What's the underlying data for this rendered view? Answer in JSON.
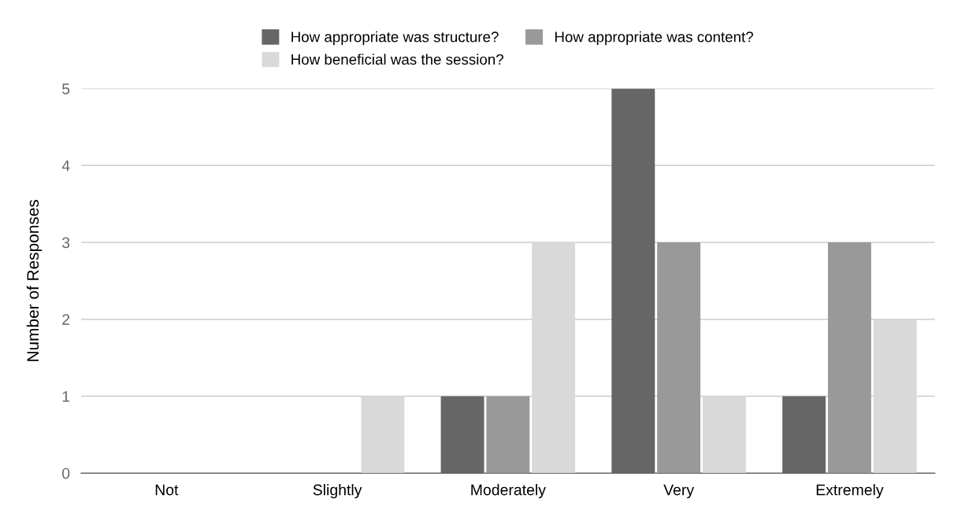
{
  "chart_data": {
    "type": "bar",
    "ylabel": "Number of Responses",
    "categories": [
      "Not",
      "Slightly",
      "Moderately",
      "Very",
      "Extremely"
    ],
    "series": [
      {
        "name": "How appropriate was structure?",
        "color": "#666666",
        "values": [
          0,
          0,
          1,
          5,
          1
        ]
      },
      {
        "name": "How appropriate was content?",
        "color": "#999999",
        "values": [
          0,
          0,
          1,
          3,
          3
        ]
      },
      {
        "name": "How beneficial was the session?",
        "color": "#d9d9d9",
        "values": [
          0,
          1,
          3,
          1,
          2
        ]
      }
    ],
    "ylim": [
      0,
      5
    ],
    "yticks": [
      0,
      1,
      2,
      3,
      4,
      5
    ],
    "grid": "y",
    "legend": "top"
  }
}
